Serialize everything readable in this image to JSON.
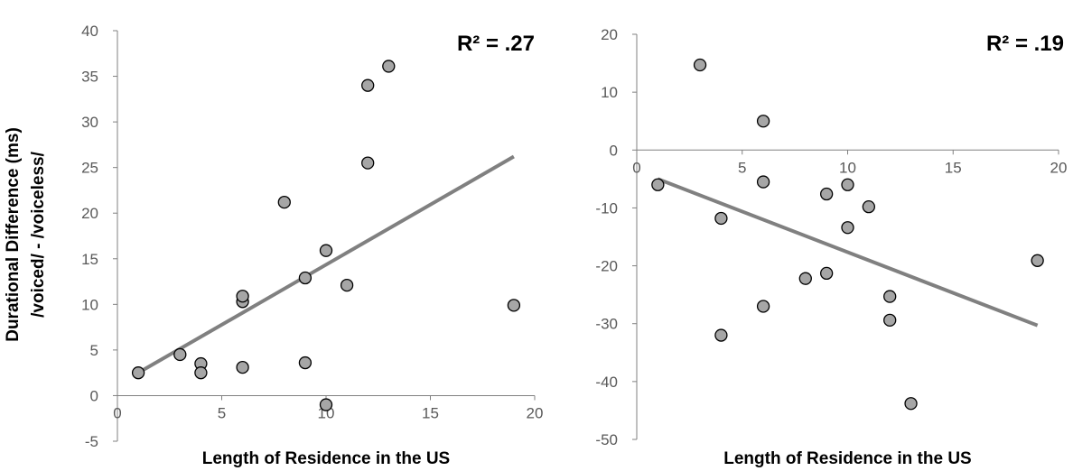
{
  "chart_data": [
    {
      "type": "scatter",
      "annotation": "R² = .27",
      "xlabel": "Length of Residence in the US",
      "ylabel_lines": [
        "Durational Difference (ms)",
        "/voiced/ - /voiceless/"
      ],
      "xlim": [
        0,
        20
      ],
      "ylim": [
        -5,
        40
      ],
      "xticks": [
        0,
        5,
        10,
        15,
        20
      ],
      "yticks": [
        -5,
        0,
        5,
        10,
        15,
        20,
        25,
        30,
        35,
        40
      ],
      "grid": false,
      "points": [
        {
          "x": 1,
          "y": 2.5
        },
        {
          "x": 3,
          "y": 4.5
        },
        {
          "x": 4,
          "y": 3.5
        },
        {
          "x": 4,
          "y": 2.5
        },
        {
          "x": 6,
          "y": 10.3
        },
        {
          "x": 6,
          "y": 10.9
        },
        {
          "x": 6,
          "y": 3.1
        },
        {
          "x": 8,
          "y": 21.2
        },
        {
          "x": 9,
          "y": 12.9
        },
        {
          "x": 9,
          "y": 3.6
        },
        {
          "x": 10,
          "y": 15.9
        },
        {
          "x": 10,
          "y": -1.0
        },
        {
          "x": 11,
          "y": 12.1
        },
        {
          "x": 12,
          "y": 34.0
        },
        {
          "x": 12,
          "y": 25.5
        },
        {
          "x": 13,
          "y": 36.1
        },
        {
          "x": 19,
          "y": 9.9
        }
      ],
      "trendline": {
        "x": [
          1,
          19
        ],
        "y": [
          2.5,
          26.2
        ]
      }
    },
    {
      "type": "scatter",
      "annotation": "R² = .19",
      "xlabel": "Length of Residence in the US",
      "xlim": [
        0,
        20
      ],
      "ylim": [
        -50,
        20
      ],
      "xticks": [
        0,
        5,
        10,
        15,
        20
      ],
      "yticks": [
        -50,
        -40,
        -30,
        -20,
        -10,
        0,
        10,
        20
      ],
      "grid": false,
      "points": [
        {
          "x": 1,
          "y": -6.0
        },
        {
          "x": 3,
          "y": 14.7
        },
        {
          "x": 4,
          "y": -11.8
        },
        {
          "x": 4,
          "y": -32.0
        },
        {
          "x": 6,
          "y": 5.0
        },
        {
          "x": 6,
          "y": -5.5
        },
        {
          "x": 6,
          "y": -27.0
        },
        {
          "x": 8,
          "y": -22.2
        },
        {
          "x": 9,
          "y": -7.6
        },
        {
          "x": 9,
          "y": -21.3
        },
        {
          "x": 10,
          "y": -6.0
        },
        {
          "x": 10,
          "y": -13.4
        },
        {
          "x": 11,
          "y": -9.8
        },
        {
          "x": 12,
          "y": -25.3
        },
        {
          "x": 12,
          "y": -29.4
        },
        {
          "x": 13,
          "y": -43.8
        },
        {
          "x": 19,
          "y": -19.1
        }
      ],
      "trendline": {
        "x": [
          1,
          19
        ],
        "y": [
          -5.0,
          -30.3
        ]
      }
    }
  ]
}
